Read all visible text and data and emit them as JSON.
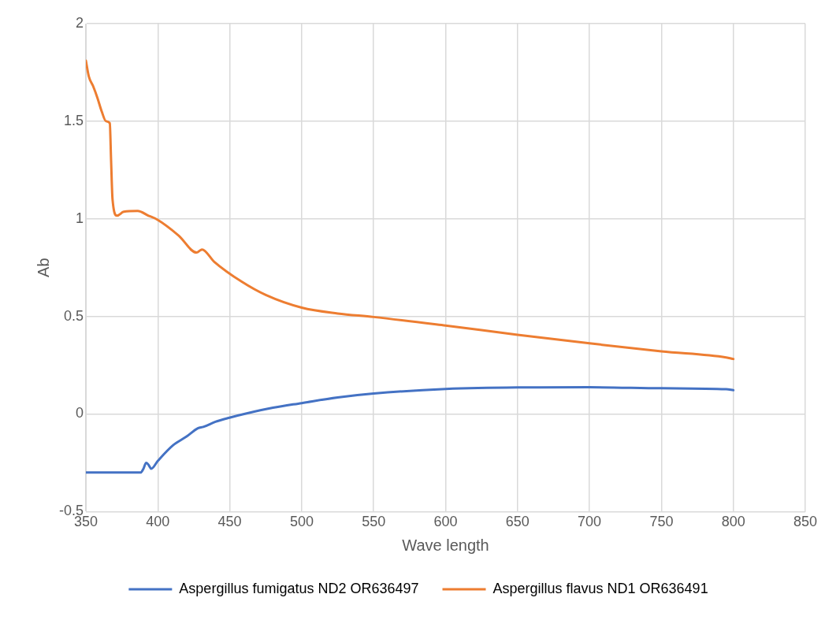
{
  "chart_data": {
    "type": "line",
    "xlabel": "Wave length",
    "ylabel": "Ab",
    "xlim": [
      350,
      850
    ],
    "xticks": [
      350,
      400,
      450,
      500,
      550,
      600,
      650,
      700,
      750,
      800,
      850
    ],
    "ylim": [
      -0.5,
      2
    ],
    "yticks": [
      -0.5,
      0,
      0.5,
      1,
      1.5,
      2
    ],
    "grid": true,
    "legend": "bottom",
    "marker": "none",
    "series": [
      {
        "name": "Aspergillus fumigatus ND2 OR636497",
        "color": "#4472c4",
        "x": [
          350,
          370,
          388,
          390,
          391.9,
          393.5,
          395.4,
          400,
          410.6,
          420,
          427.8,
          431.6,
          440,
          449.7,
          460,
          480,
          500,
          525,
          550,
          600,
          650,
          700,
          750,
          795,
          800
        ],
        "values": [
          -0.3,
          -0.3,
          -0.3,
          -0.28,
          -0.25,
          -0.26,
          -0.28,
          -0.24,
          -0.16,
          -0.115,
          -0.073,
          -0.066,
          -0.04,
          -0.019,
          0,
          0.032,
          0.056,
          0.085,
          0.105,
          0.128,
          0.136,
          0.137,
          0.132,
          0.127,
          0.122
        ]
      },
      {
        "name": "Aspergillus flavus ND1 OR636491",
        "color": "#ed7d31",
        "x": [
          350,
          352,
          355,
          358,
          361,
          364,
          366.6,
          367.5,
          368.5,
          371.6,
          376.3,
          385.9,
          393.5,
          399.6,
          414.5,
          426.9,
          430.7,
          439.2,
          458.3,
          475,
          500,
          525,
          550,
          600,
          650,
          700,
          750,
          795,
          800
        ],
        "values": [
          1.81,
          1.73,
          1.68,
          1.62,
          1.55,
          1.5,
          1.49,
          1.3,
          1.1,
          1.016,
          1.036,
          1.04,
          1.016,
          0.996,
          0.914,
          0.827,
          0.843,
          0.78,
          0.678,
          0.61,
          0.545,
          0.515,
          0.497,
          0.453,
          0.406,
          0.362,
          0.321,
          0.29,
          0.282
        ]
      }
    ]
  }
}
